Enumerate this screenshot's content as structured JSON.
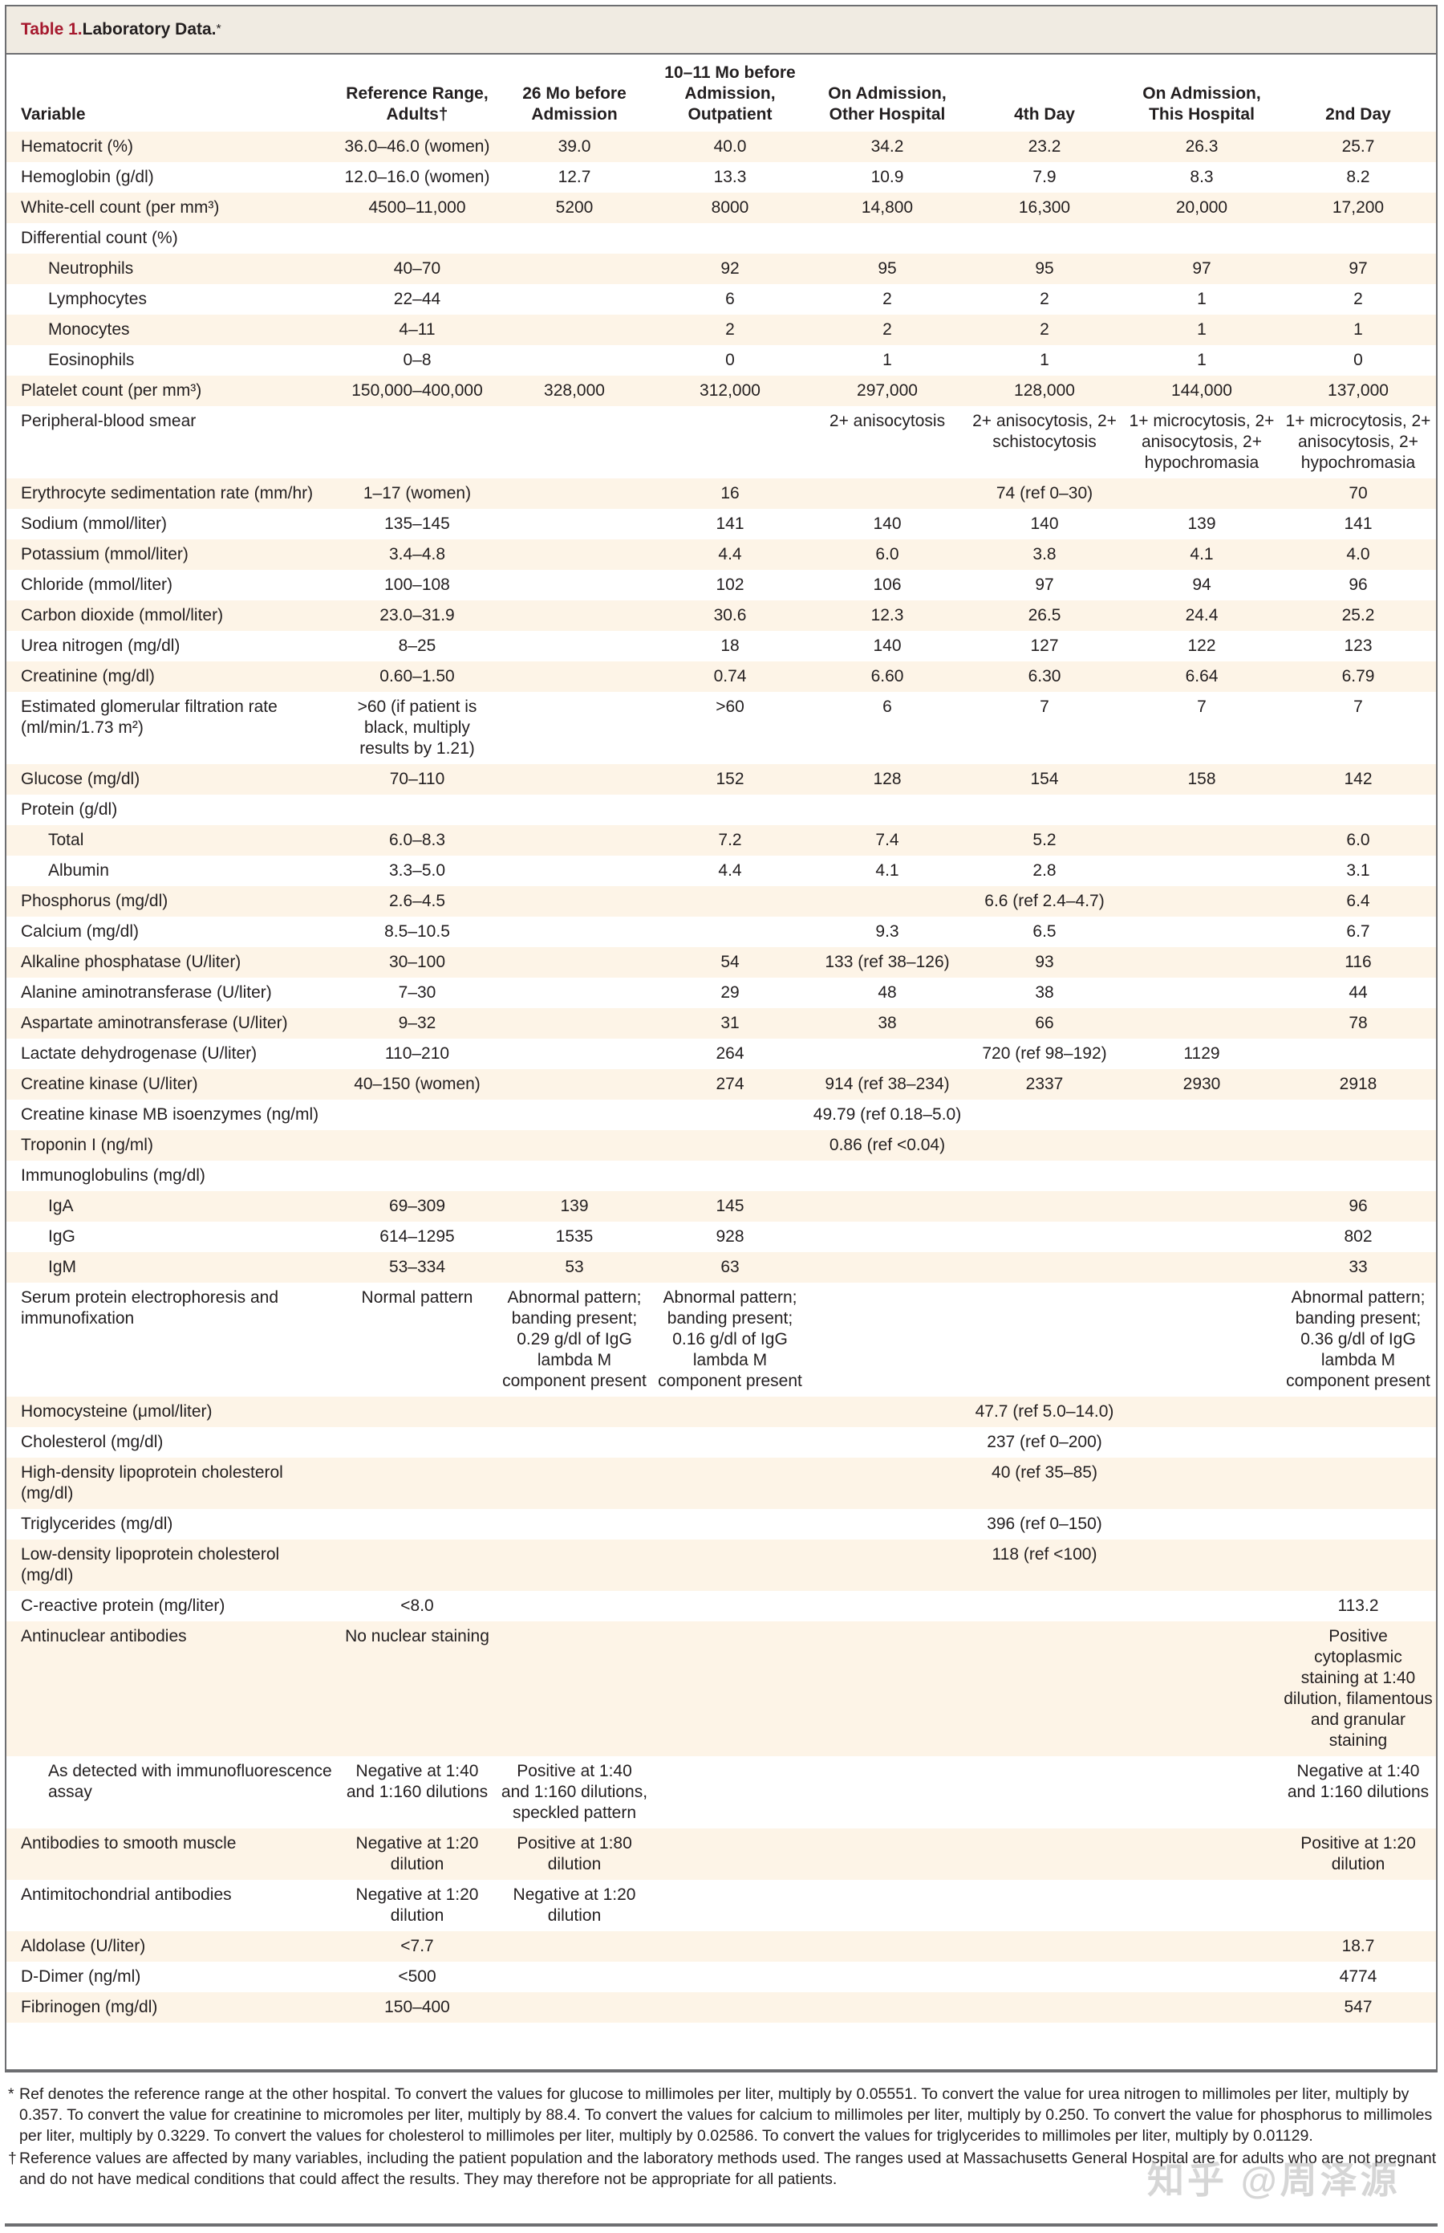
{
  "title": {
    "number": "Table 1.",
    "text": " Laboratory Data.",
    "symbol": "*"
  },
  "columns": [
    "Variable",
    "Reference Range, Adults†",
    "26 Mo before Admission",
    "10–11 Mo before Admission, Outpatient",
    "On Admission, Other Hospital",
    "4th Day",
    "On Admission, This Hospital",
    "2nd Day"
  ],
  "rows": [
    {
      "variable": "Hematocrit (%)",
      "values": [
        "36.0–46.0 (women)",
        "39.0",
        "40.0",
        "34.2",
        "23.2",
        "26.3",
        "25.7"
      ]
    },
    {
      "variable": "Hemoglobin (g/dl)",
      "values": [
        "12.0–16.0 (women)",
        "12.7",
        "13.3",
        "10.9",
        "7.9",
        "8.3",
        "8.2"
      ]
    },
    {
      "variable": "White-cell count (per mm³)",
      "values": [
        "4500–11,000",
        "5200",
        "8000",
        "14,800",
        "16,300",
        "20,000",
        "17,200"
      ]
    },
    {
      "variable": "Differential count (%)",
      "values": [
        "",
        "",
        "",
        "",
        "",
        "",
        ""
      ]
    },
    {
      "variable": "Neutrophils",
      "indent": true,
      "values": [
        "40–70",
        "",
        "92",
        "95",
        "95",
        "97",
        "97"
      ]
    },
    {
      "variable": "Lymphocytes",
      "indent": true,
      "values": [
        "22–44",
        "",
        "6",
        "2",
        "2",
        "1",
        "2"
      ]
    },
    {
      "variable": "Monocytes",
      "indent": true,
      "values": [
        "4–11",
        "",
        "2",
        "2",
        "2",
        "1",
        "1"
      ]
    },
    {
      "variable": "Eosinophils",
      "indent": true,
      "values": [
        "0–8",
        "",
        "0",
        "1",
        "1",
        "1",
        "0"
      ]
    },
    {
      "variable": "Platelet count (per mm³)",
      "values": [
        "150,000–400,000",
        "328,000",
        "312,000",
        "297,000",
        "128,000",
        "144,000",
        "137,000"
      ]
    },
    {
      "variable": "Peripheral-blood smear",
      "values": [
        "",
        "",
        "",
        "2+ anisocytosis",
        "2+ anisocytosis, 2+ schistocytosis",
        "1+ microcytosis, 2+ anisocytosis, 2+ hypochromasia",
        "1+ microcytosis, 2+ anisocytosis, 2+ hypochromasia"
      ]
    },
    {
      "variable": "Erythrocyte sedimentation rate (mm/hr)",
      "values": [
        "1–17 (women)",
        "",
        "16",
        "",
        "74 (ref 0–30)",
        "",
        "70"
      ]
    },
    {
      "variable": "Sodium (mmol/liter)",
      "values": [
        "135–145",
        "",
        "141",
        "140",
        "140",
        "139",
        "141"
      ]
    },
    {
      "variable": "Potassium (mmol/liter)",
      "values": [
        "3.4–4.8",
        "",
        "4.4",
        "6.0",
        "3.8",
        "4.1",
        "4.0"
      ]
    },
    {
      "variable": "Chloride (mmol/liter)",
      "values": [
        "100–108",
        "",
        "102",
        "106",
        "97",
        "94",
        "96"
      ]
    },
    {
      "variable": "Carbon dioxide (mmol/liter)",
      "values": [
        "23.0–31.9",
        "",
        "30.6",
        "12.3",
        "26.5",
        "24.4",
        "25.2"
      ]
    },
    {
      "variable": "Urea nitrogen (mg/dl)",
      "values": [
        "8–25",
        "",
        "18",
        "140",
        "127",
        "122",
        "123"
      ]
    },
    {
      "variable": "Creatinine (mg/dl)",
      "values": [
        "0.60–1.50",
        "",
        "0.74",
        "6.60",
        "6.30",
        "6.64",
        "6.79"
      ]
    },
    {
      "variable": "Estimated glomerular filtration rate (ml/min/1.73 m²)",
      "values": [
        ">60 (if patient is black, multiply results by 1.21)",
        "",
        ">60",
        "6",
        "7",
        "7",
        "7"
      ]
    },
    {
      "variable": "Glucose (mg/dl)",
      "values": [
        "70–110",
        "",
        "152",
        "128",
        "154",
        "158",
        "142"
      ]
    },
    {
      "variable": "Protein (g/dl)",
      "values": [
        "",
        "",
        "",
        "",
        "",
        "",
        ""
      ]
    },
    {
      "variable": "Total",
      "indent": true,
      "values": [
        "6.0–8.3",
        "",
        "7.2",
        "7.4",
        "5.2",
        "",
        "6.0"
      ]
    },
    {
      "variable": "Albumin",
      "indent": true,
      "values": [
        "3.3–5.0",
        "",
        "4.4",
        "4.1",
        "2.8",
        "",
        "3.1"
      ]
    },
    {
      "variable": "Phosphorus (mg/dl)",
      "values": [
        "2.6–4.5",
        "",
        "",
        "",
        "6.6 (ref 2.4–4.7)",
        "",
        "6.4"
      ]
    },
    {
      "variable": "Calcium (mg/dl)",
      "values": [
        "8.5–10.5",
        "",
        "",
        "9.3",
        "6.5",
        "",
        "6.7"
      ]
    },
    {
      "variable": "Alkaline phosphatase (U/liter)",
      "values": [
        "30–100",
        "",
        "54",
        "133 (ref 38–126)",
        "93",
        "",
        "116"
      ]
    },
    {
      "variable": "Alanine aminotransferase (U/liter)",
      "values": [
        "7–30",
        "",
        "29",
        "48",
        "38",
        "",
        "44"
      ]
    },
    {
      "variable": "Aspartate aminotransferase (U/liter)",
      "values": [
        "9–32",
        "",
        "31",
        "38",
        "66",
        "",
        "78"
      ]
    },
    {
      "variable": "Lactate dehydrogenase (U/liter)",
      "values": [
        "110–210",
        "",
        "264",
        "",
        "720 (ref 98–192)",
        "1129",
        ""
      ]
    },
    {
      "variable": "Creatine kinase (U/liter)",
      "values": [
        "40–150 (women)",
        "",
        "274",
        "914 (ref 38–234)",
        "2337",
        "2930",
        "2918"
      ]
    },
    {
      "variable": "Creatine kinase MB isoenzymes (ng/ml)",
      "values": [
        "",
        "",
        "",
        "49.79 (ref 0.18–5.0)",
        "",
        "",
        ""
      ]
    },
    {
      "variable": "Troponin I (ng/ml)",
      "values": [
        "",
        "",
        "",
        "0.86 (ref <0.04)",
        "",
        "",
        ""
      ]
    },
    {
      "variable": "Immunoglobulins (mg/dl)",
      "values": [
        "",
        "",
        "",
        "",
        "",
        "",
        ""
      ]
    },
    {
      "variable": "IgA",
      "indent": true,
      "values": [
        "69–309",
        "139",
        "145",
        "",
        "",
        "",
        "96"
      ]
    },
    {
      "variable": "IgG",
      "indent": true,
      "values": [
        "614–1295",
        "1535",
        "928",
        "",
        "",
        "",
        "802"
      ]
    },
    {
      "variable": "IgM",
      "indent": true,
      "values": [
        "53–334",
        "53",
        "63",
        "",
        "",
        "",
        "33"
      ]
    },
    {
      "variable": "Serum protein electrophoresis and immunofixation",
      "values": [
        "Normal pattern",
        "Abnormal pattern; banding present; 0.29 g/dl of IgG lambda M component present",
        "Abnormal pattern; banding present; 0.16 g/dl of IgG lambda M component present",
        "",
        "",
        "",
        "Abnormal pattern; banding present; 0.36 g/dl of IgG lambda M component present"
      ]
    },
    {
      "variable": "Homocysteine (μmol/liter)",
      "values": [
        "",
        "",
        "",
        "",
        "47.7 (ref 5.0–14.0)",
        "",
        ""
      ]
    },
    {
      "variable": "Cholesterol (mg/dl)",
      "values": [
        "",
        "",
        "",
        "",
        "237 (ref 0–200)",
        "",
        ""
      ]
    },
    {
      "variable": "High-density lipoprotein cholesterol (mg/dl)",
      "values": [
        "",
        "",
        "",
        "",
        "40 (ref 35–85)",
        "",
        ""
      ]
    },
    {
      "variable": "Triglycerides (mg/dl)",
      "values": [
        "",
        "",
        "",
        "",
        "396 (ref 0–150)",
        "",
        ""
      ]
    },
    {
      "variable": "Low-density lipoprotein cholesterol (mg/dl)",
      "values": [
        "",
        "",
        "",
        "",
        "118 (ref <100)",
        "",
        ""
      ]
    },
    {
      "variable": "C-reactive protein (mg/liter)",
      "values": [
        "<8.0",
        "",
        "",
        "",
        "",
        "",
        "113.2"
      ]
    },
    {
      "variable": "Antinuclear antibodies",
      "values": [
        "No nuclear staining",
        "",
        "",
        "",
        "",
        "",
        "Positive cytoplasmic staining at 1:40 dilution, filamentous and granular staining"
      ]
    },
    {
      "variable": "As detected with immunofluorescence assay",
      "indent": true,
      "values": [
        "Negative at 1:40 and 1:160 dilutions",
        "Positive at 1:40 and 1:160 dilutions, speckled pattern",
        "",
        "",
        "",
        "",
        "Negative at 1:40 and 1:160 dilutions"
      ]
    },
    {
      "variable": "Antibodies to smooth muscle",
      "values": [
        "Negative at 1:20 dilution",
        "Positive at 1:80 dilution",
        "",
        "",
        "",
        "",
        "Positive at 1:20 dilution"
      ]
    },
    {
      "variable": "Antimitochondrial antibodies",
      "values": [
        "Negative at 1:20 dilution",
        "Negative at 1:20 dilution",
        "",
        "",
        "",
        "",
        ""
      ]
    },
    {
      "variable": "Aldolase (U/liter)",
      "values": [
        "<7.7",
        "",
        "",
        "",
        "",
        "",
        "18.7"
      ]
    },
    {
      "variable": "D-Dimer (ng/ml)",
      "values": [
        "<500",
        "",
        "",
        "",
        "",
        "",
        "4774"
      ]
    },
    {
      "variable": "Fibrinogen (mg/dl)",
      "values": [
        "150–400",
        "",
        "",
        "",
        "",
        "",
        "547"
      ]
    }
  ],
  "footnotes": [
    {
      "symbol": "*",
      "text": "Ref denotes the reference range at the other hospital. To convert the values for glucose to millimoles per liter, multiply by 0.05551. To convert the value for urea nitrogen to millimoles per liter, multiply by 0.357. To convert the value for creatinine to micromoles per liter, multiply by 88.4. To convert the values for calcium to millimoles per liter, multiply by 0.250. To convert the value for phosphorus to millimoles per liter, multiply by 0.3229. To convert the values for cholesterol to millimoles per liter, multiply by 0.02586. To convert the values for triglycerides to millimoles per liter, multiply by 0.01129."
    },
    {
      "symbol": "†",
      "text": "Reference values are affected by many variables, including the patient population and the laboratory methods used. The ranges used at Massachusetts General Hospital are for adults who are not pregnant and do not have medical conditions that could affect the results. They may therefore not be appropriate for all patients."
    }
  ],
  "watermark": "知乎 @周泽源",
  "colors": {
    "title_number": "#a6192e",
    "title_bar_bg": "#f0ebe2",
    "row_shade": "#fdf4e7",
    "border": "#6d6e71"
  }
}
